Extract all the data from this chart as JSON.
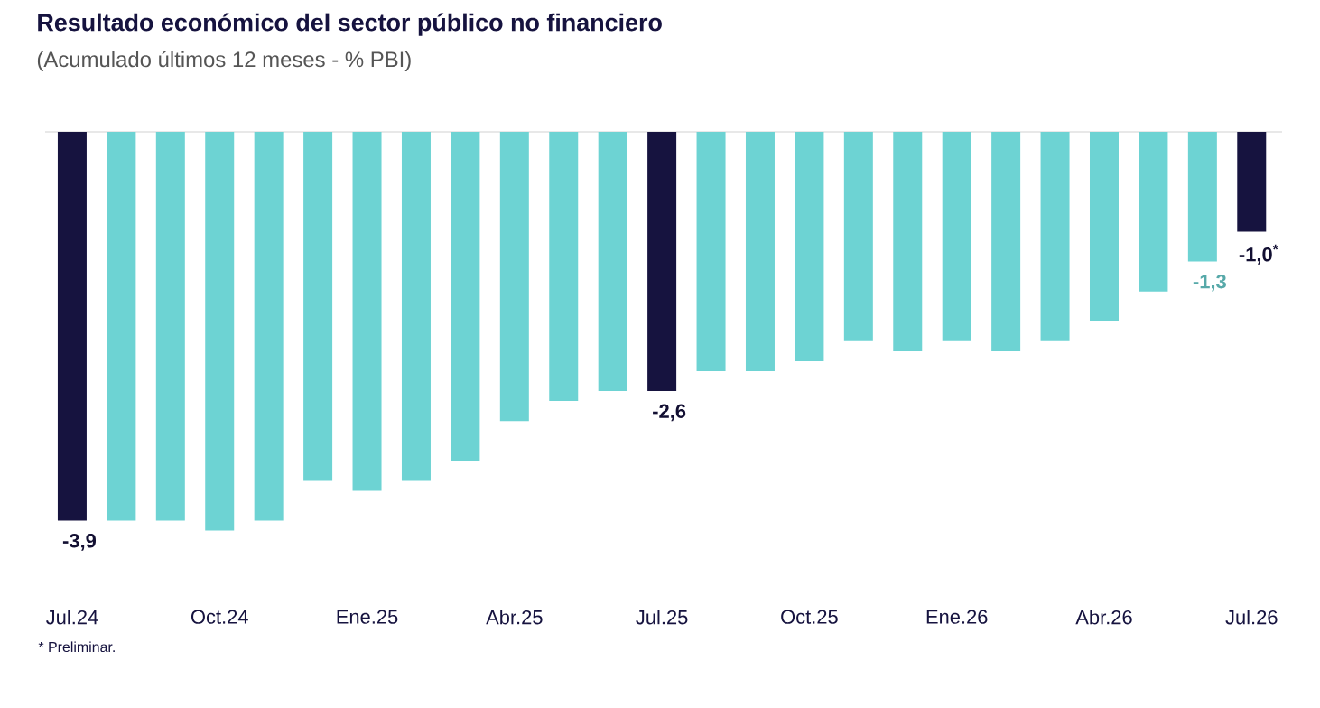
{
  "chart_data": {
    "type": "bar",
    "title": "Resultado económico del sector público no financiero",
    "subtitle": "(Acumulado últimos 12 meses - % PBI)",
    "categories": [
      "Jul.24",
      null,
      null,
      "Oct.24",
      null,
      null,
      "Ene.25",
      null,
      null,
      "Abr.25",
      null,
      null,
      "Jul.25",
      null,
      null,
      "Oct.25",
      null,
      null,
      "Ene.26",
      null,
      null,
      "Abr.26",
      null,
      null,
      "Jul.26"
    ],
    "values": [
      -3.9,
      -3.9,
      -3.9,
      -4.0,
      -3.9,
      -3.5,
      -3.6,
      -3.5,
      -3.3,
      -2.9,
      -2.7,
      -2.6,
      -2.6,
      -2.4,
      -2.4,
      -2.3,
      -2.1,
      -2.2,
      -2.1,
      -2.2,
      -2.1,
      -1.9,
      -1.6,
      -1.3,
      -1.0
    ],
    "colors": [
      "#16133f",
      "#6dd3d3",
      "#6dd3d3",
      "#6dd3d3",
      "#6dd3d3",
      "#6dd3d3",
      "#6dd3d3",
      "#6dd3d3",
      "#6dd3d3",
      "#6dd3d3",
      "#6dd3d3",
      "#6dd3d3",
      "#16133f",
      "#6dd3d3",
      "#6dd3d3",
      "#6dd3d3",
      "#6dd3d3",
      "#6dd3d3",
      "#6dd3d3",
      "#6dd3d3",
      "#6dd3d3",
      "#6dd3d3",
      "#6dd3d3",
      "#6dd3d3",
      "#16133f"
    ],
    "value_labels": [
      "-3,9",
      null,
      null,
      null,
      null,
      null,
      null,
      null,
      null,
      null,
      null,
      null,
      "-2,6",
      null,
      null,
      null,
      null,
      null,
      null,
      null,
      null,
      null,
      null,
      "-1,3",
      "-1,0$^{*}$"
    ],
    "tick_labels": "x",
    "annotations": [
      "* Preliminar."
    ]
  }
}
